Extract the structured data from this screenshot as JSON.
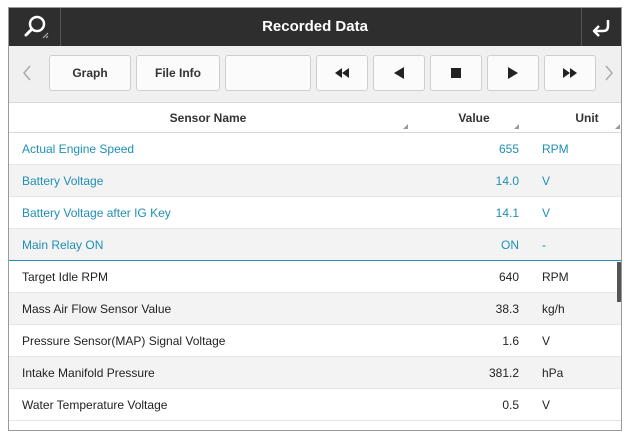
{
  "title": "Recorded Data",
  "toolbar": {
    "graph_label": "Graph",
    "file_info_label": "File Info",
    "blank_label": ""
  },
  "icons": {
    "search": "search-icon",
    "back": "back-arrow-icon",
    "prev_chevron": "chevron-left-icon",
    "next_chevron": "chevron-right-icon",
    "rewind": "rewind-icon",
    "step_back": "step-back-icon",
    "stop": "stop-icon",
    "play": "play-icon",
    "fast_forward": "fast-forward-icon"
  },
  "table": {
    "headers": {
      "name": "Sensor Name",
      "value": "Value",
      "unit": "Unit"
    },
    "rows": [
      {
        "name": "Actual Engine Speed",
        "value": "655",
        "unit": "RPM",
        "selected": true
      },
      {
        "name": "Battery Voltage",
        "value": "14.0",
        "unit": "V",
        "selected": true
      },
      {
        "name": "Battery Voltage after IG Key",
        "value": "14.1",
        "unit": "V",
        "selected": true
      },
      {
        "name": "Main Relay ON",
        "value": "ON",
        "unit": "-",
        "selected": true
      },
      {
        "name": "Target Idle RPM",
        "value": "640",
        "unit": "RPM",
        "selected": false
      },
      {
        "name": "Mass Air Flow Sensor Value",
        "value": "38.3",
        "unit": "kg/h",
        "selected": false
      },
      {
        "name": "Pressure Sensor(MAP) Signal Voltage",
        "value": "1.6",
        "unit": "V",
        "selected": false
      },
      {
        "name": "Intake Manifold Pressure",
        "value": "381.2",
        "unit": "hPa",
        "selected": false
      },
      {
        "name": "Water Temperature Voltage",
        "value": "0.5",
        "unit": "V",
        "selected": false
      }
    ]
  },
  "colors": {
    "titlebar": "#2e2e2e",
    "selected_text": "#1f8fb4",
    "toolbar_bg": "#f0f0f0"
  }
}
